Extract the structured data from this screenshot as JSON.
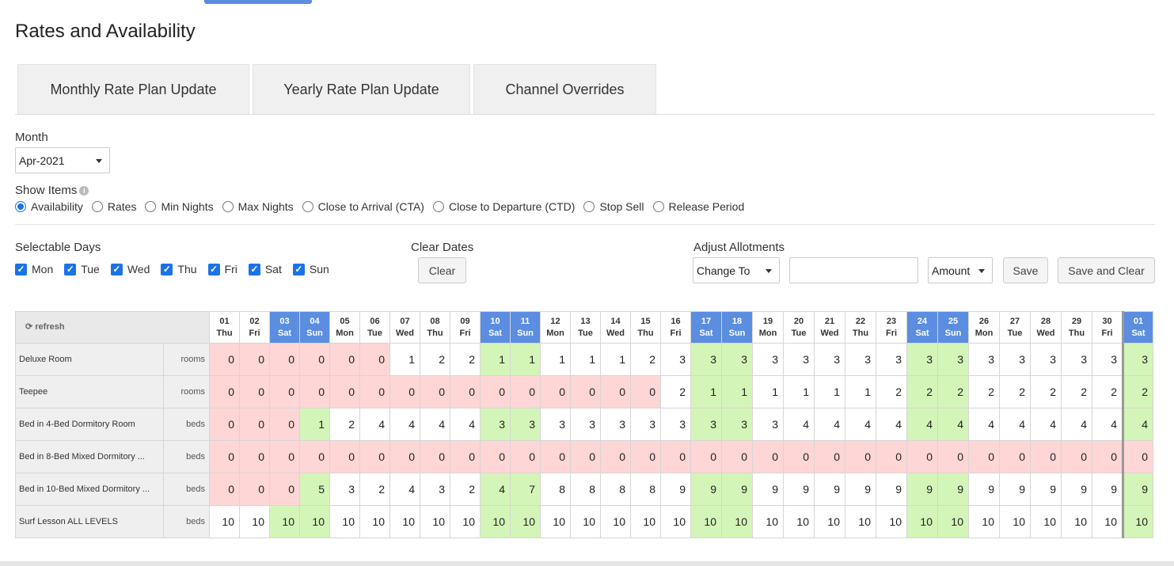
{
  "page_title": "Rates and Availability",
  "tabs": [
    "Monthly Rate Plan Update",
    "Yearly Rate Plan Update",
    "Channel Overrides"
  ],
  "month": {
    "label": "Month",
    "value": "Apr-2021"
  },
  "show_items": {
    "label": "Show Items",
    "options": [
      "Availability",
      "Rates",
      "Min Nights",
      "Max Nights",
      "Close to Arrival (CTA)",
      "Close to Departure (CTD)",
      "Stop Sell",
      "Release Period"
    ],
    "selected": "Availability"
  },
  "selectable_days": {
    "label": "Selectable Days",
    "days": [
      "Mon",
      "Tue",
      "Wed",
      "Thu",
      "Fri",
      "Sat",
      "Sun"
    ]
  },
  "clear_dates": {
    "label": "Clear Dates",
    "button": "Clear"
  },
  "adjust_allotments": {
    "label": "Adjust Allotments",
    "mode": "Change To",
    "value": "",
    "unit": "Amount",
    "save": "Save",
    "save_clear": "Save and Clear"
  },
  "grid": {
    "refresh_label": "refresh",
    "dates": [
      [
        "01",
        "Thu"
      ],
      [
        "02",
        "Fri"
      ],
      [
        "03",
        "Sat"
      ],
      [
        "04",
        "Sun"
      ],
      [
        "05",
        "Mon"
      ],
      [
        "06",
        "Tue"
      ],
      [
        "07",
        "Wed"
      ],
      [
        "08",
        "Thu"
      ],
      [
        "09",
        "Fri"
      ],
      [
        "10",
        "Sat"
      ],
      [
        "11",
        "Sun"
      ],
      [
        "12",
        "Mon"
      ],
      [
        "13",
        "Tue"
      ],
      [
        "14",
        "Wed"
      ],
      [
        "15",
        "Thu"
      ],
      [
        "16",
        "Fri"
      ],
      [
        "17",
        "Sat"
      ],
      [
        "18",
        "Sun"
      ],
      [
        "19",
        "Mon"
      ],
      [
        "20",
        "Tue"
      ],
      [
        "21",
        "Wed"
      ],
      [
        "22",
        "Thu"
      ],
      [
        "23",
        "Fri"
      ],
      [
        "24",
        "Sat"
      ],
      [
        "25",
        "Sun"
      ],
      [
        "26",
        "Mon"
      ],
      [
        "27",
        "Tue"
      ],
      [
        "28",
        "Wed"
      ],
      [
        "29",
        "Thu"
      ],
      [
        "30",
        "Fri"
      ],
      [
        "01",
        "Sat"
      ]
    ],
    "rows": [
      {
        "name": "Deluxe Room",
        "unit": "rooms",
        "values": [
          0,
          0,
          0,
          0,
          0,
          0,
          1,
          2,
          2,
          1,
          1,
          1,
          1,
          1,
          2,
          3,
          3,
          3,
          3,
          3,
          3,
          3,
          3,
          3,
          3,
          3,
          3,
          3,
          3,
          3,
          3
        ]
      },
      {
        "name": "Teepee",
        "unit": "rooms",
        "values": [
          0,
          0,
          0,
          0,
          0,
          0,
          0,
          0,
          0,
          0,
          0,
          0,
          0,
          0,
          0,
          2,
          1,
          1,
          1,
          1,
          1,
          1,
          2,
          2,
          2,
          2,
          2,
          2,
          2,
          2,
          2
        ]
      },
      {
        "name": "Bed in 4-Bed Dormitory Room",
        "unit": "beds",
        "values": [
          0,
          0,
          0,
          1,
          2,
          4,
          4,
          4,
          4,
          3,
          3,
          3,
          3,
          3,
          3,
          3,
          3,
          3,
          3,
          4,
          4,
          4,
          4,
          4,
          4,
          4,
          4,
          4,
          4,
          4,
          4
        ]
      },
      {
        "name": "Bed in 8-Bed Mixed Dormitory ...",
        "unit": "beds",
        "values": [
          0,
          0,
          0,
          0,
          0,
          0,
          0,
          0,
          0,
          0,
          0,
          0,
          0,
          0,
          0,
          0,
          0,
          0,
          0,
          0,
          0,
          0,
          0,
          0,
          0,
          0,
          0,
          0,
          0,
          0,
          0
        ]
      },
      {
        "name": "Bed in 10-Bed Mixed Dormitory ...",
        "unit": "beds",
        "values": [
          0,
          0,
          0,
          5,
          3,
          2,
          4,
          3,
          2,
          4,
          7,
          8,
          8,
          8,
          8,
          9,
          9,
          9,
          9,
          9,
          9,
          9,
          9,
          9,
          9,
          9,
          9,
          9,
          9,
          9,
          9
        ]
      },
      {
        "name": "Surf Lesson ALL LEVELS",
        "unit": "beds",
        "values": [
          10,
          10,
          10,
          10,
          10,
          10,
          10,
          10,
          10,
          10,
          10,
          10,
          10,
          10,
          10,
          10,
          10,
          10,
          10,
          10,
          10,
          10,
          10,
          10,
          10,
          10,
          10,
          10,
          10,
          10,
          10
        ]
      }
    ]
  },
  "colors": {
    "accent": "#1a73e8",
    "weekend_header": "#5b8de0",
    "zero_cell": "#ffd6d6",
    "weekend_cell": "#d4f5b8"
  }
}
